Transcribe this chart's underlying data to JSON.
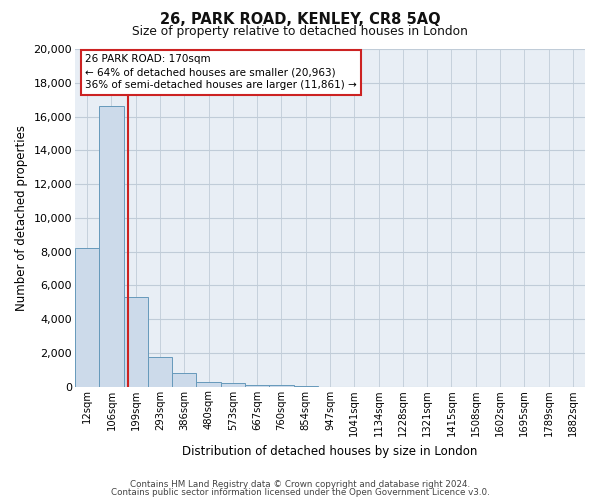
{
  "title": "26, PARK ROAD, KENLEY, CR8 5AQ",
  "subtitle": "Size of property relative to detached houses in London",
  "xlabel": "Distribution of detached houses by size in London",
  "ylabel": "Number of detached properties",
  "bar_labels": [
    "12sqm",
    "106sqm",
    "199sqm",
    "293sqm",
    "386sqm",
    "480sqm",
    "573sqm",
    "667sqm",
    "760sqm",
    "854sqm",
    "947sqm",
    "1041sqm",
    "1134sqm",
    "1228sqm",
    "1321sqm",
    "1415sqm",
    "1508sqm",
    "1602sqm",
    "1695sqm",
    "1789sqm",
    "1882sqm"
  ],
  "bar_values": [
    8200,
    16600,
    5300,
    1750,
    800,
    280,
    200,
    120,
    80,
    50,
    0,
    0,
    0,
    0,
    0,
    0,
    0,
    0,
    0,
    0,
    0
  ],
  "bar_color": "#ccdaea",
  "bar_edge_color": "#6699bb",
  "vline_color": "#cc2222",
  "vline_x": 1.68,
  "ylim": [
    0,
    20000
  ],
  "yticks": [
    0,
    2000,
    4000,
    6000,
    8000,
    10000,
    12000,
    14000,
    16000,
    18000,
    20000
  ],
  "annotation_line1": "26 PARK ROAD: 170sqm",
  "annotation_line2": "← 64% of detached houses are smaller (20,963)",
  "annotation_line3": "36% of semi-detached houses are larger (11,861) →",
  "footer1": "Contains HM Land Registry data © Crown copyright and database right 2024.",
  "footer2": "Contains public sector information licensed under the Open Government Licence v3.0.",
  "bg_color": "#ffffff",
  "plot_bg_color": "#e8eef5",
  "grid_color": "#c0ccd8",
  "fig_width": 6.0,
  "fig_height": 5.0
}
